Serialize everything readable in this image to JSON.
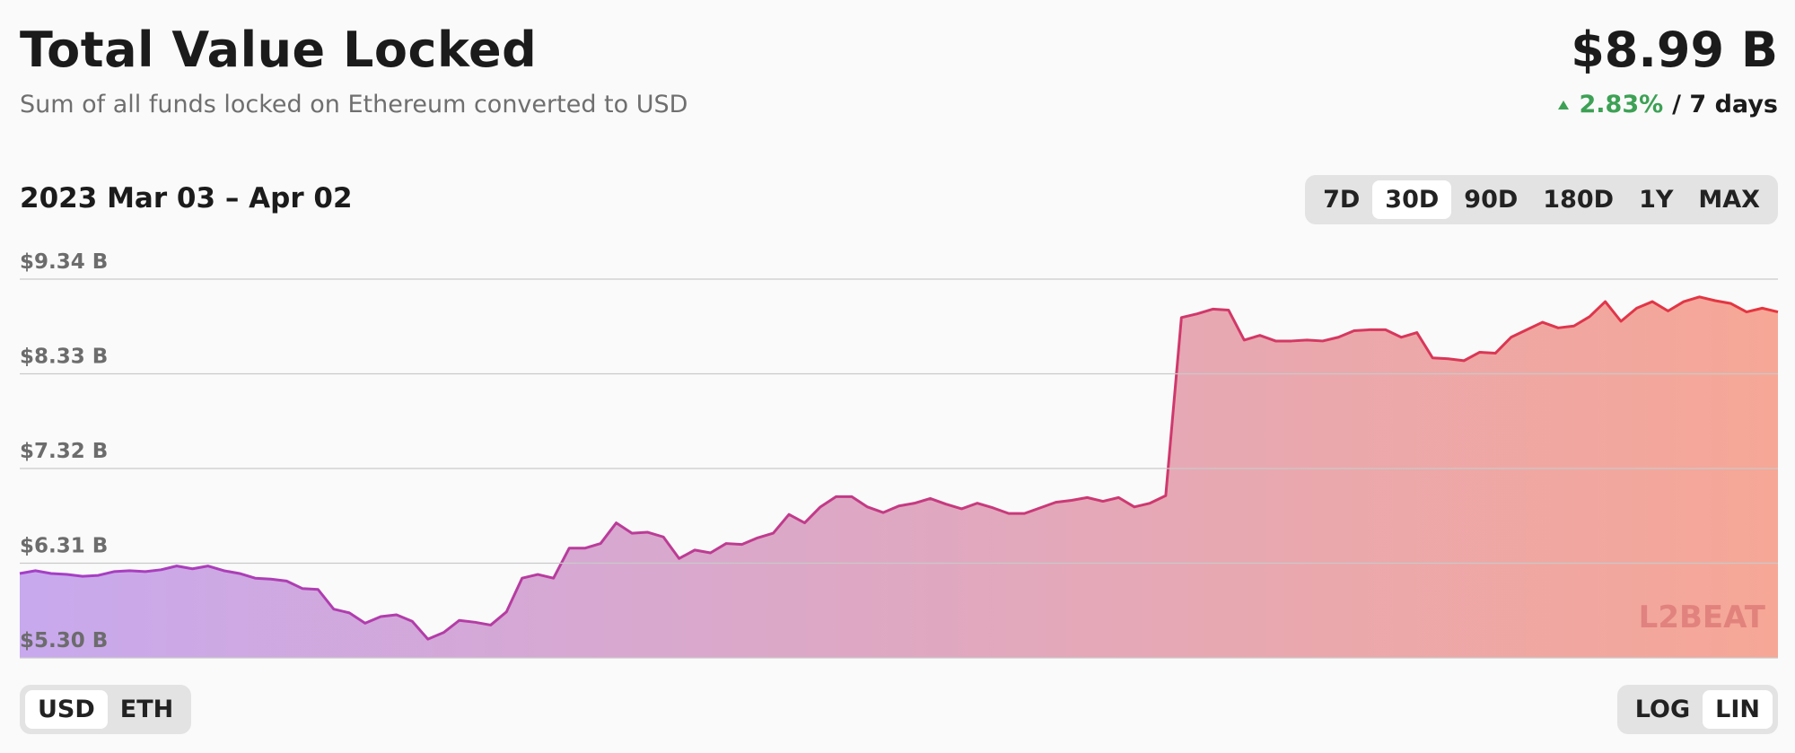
{
  "header": {
    "title": "Total Value Locked",
    "subtitle": "Sum of all funds locked on Ethereum converted to USD",
    "value": "$8.99 B",
    "change": "2.83%",
    "period": "/ 7 days"
  },
  "controls": {
    "ranges": [
      "7D",
      "30D",
      "90D",
      "180D",
      "1Y",
      "MAX"
    ],
    "range_selected": 1,
    "units": [
      "USD",
      "ETH"
    ],
    "unit_selected": 0,
    "scales": [
      "LOG",
      "LIN"
    ],
    "scale_selected": 1
  },
  "chart_data": {
    "type": "area",
    "subtitle": "2023 Mar 03 – Apr 02",
    "values": [
      6.2,
      6.23,
      6.2,
      6.19,
      6.17,
      6.18,
      6.22,
      6.23,
      6.22,
      6.24,
      6.28,
      6.25,
      6.28,
      6.23,
      6.2,
      6.15,
      6.14,
      6.12,
      6.04,
      6.03,
      5.82,
      5.78,
      5.67,
      5.74,
      5.76,
      5.69,
      5.5,
      5.57,
      5.7,
      5.68,
      5.65,
      5.79,
      6.15,
      6.19,
      6.15,
      6.47,
      6.47,
      6.52,
      6.74,
      6.63,
      6.64,
      6.59,
      6.36,
      6.45,
      6.42,
      6.52,
      6.51,
      6.58,
      6.63,
      6.83,
      6.74,
      6.91,
      7.02,
      7.02,
      6.91,
      6.85,
      6.92,
      6.95,
      7.0,
      6.94,
      6.89,
      6.95,
      6.9,
      6.84,
      6.84,
      6.9,
      6.96,
      6.98,
      7.01,
      6.97,
      7.01,
      6.91,
      6.95,
      7.03,
      8.93,
      8.97,
      9.02,
      9.01,
      8.69,
      8.74,
      8.68,
      8.68,
      8.69,
      8.68,
      8.72,
      8.79,
      8.8,
      8.8,
      8.72,
      8.77,
      8.5,
      8.49,
      8.47,
      8.56,
      8.55,
      8.72,
      8.8,
      8.88,
      8.82,
      8.84,
      8.94,
      9.1,
      8.89,
      9.03,
      9.1,
      9.0,
      9.1,
      9.15,
      9.11,
      9.08,
      8.99,
      9.03,
      8.99
    ],
    "ylim": [
      5.3,
      9.34
    ],
    "yticks": [
      {
        "value": 5.3,
        "label": "$5.30 B"
      },
      {
        "value": 6.31,
        "label": "$6.31 B"
      },
      {
        "value": 7.32,
        "label": "$7.32 B"
      },
      {
        "value": 8.33,
        "label": "$8.33 B"
      },
      {
        "value": 9.34,
        "label": "$9.34 B"
      }
    ],
    "grid": true,
    "colors": {
      "line": [
        "#a43fc8",
        "#e6353d"
      ],
      "fill": [
        "#c8a9ee",
        "#f6a796"
      ]
    },
    "watermark": "L2BEAT"
  }
}
